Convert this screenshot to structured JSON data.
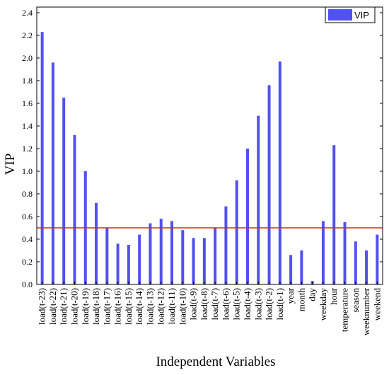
{
  "chart_data": {
    "type": "bar",
    "title": "",
    "xlabel": "Independent Variables",
    "ylabel": "VIP",
    "ylim": [
      0,
      2.45
    ],
    "yticks": [
      "0.0",
      "0.2",
      "0.4",
      "0.6",
      "0.8",
      "1.0",
      "1.2",
      "1.4",
      "1.6",
      "1.8",
      "2.0",
      "2.2",
      "2.4"
    ],
    "legend_position": "top-right",
    "grid": false,
    "categories": [
      "load(t-23)",
      "load(t-22)",
      "load(t-21)",
      "load(t-20)",
      "load(t-19)",
      "load(t-18)",
      "load(t-17)",
      "load(t-16)",
      "load(t-15)",
      "load(t-14)",
      "load(t-13)",
      "load(t-12)",
      "load(t-11)",
      "load(t-10)",
      "load(t-9)",
      "load(t-8)",
      "load(t-7)",
      "load(t-6)",
      "load(t-5)",
      "load(t-4)",
      "load(t-3)",
      "load(t-2)",
      "load(t-1)",
      "year",
      "month",
      "day",
      "weekday",
      "hour",
      "temperature",
      "season",
      "weeknumber",
      "weekend"
    ],
    "series": [
      {
        "name": "VIP",
        "color": "#5151f0",
        "values": [
          2.23,
          1.96,
          1.65,
          1.32,
          1.0,
          0.72,
          0.5,
          0.36,
          0.35,
          0.44,
          0.54,
          0.58,
          0.56,
          0.48,
          0.41,
          0.41,
          0.5,
          0.69,
          0.92,
          1.2,
          1.49,
          1.76,
          1.97,
          0.26,
          0.3,
          0.03,
          0.56,
          1.23,
          0.55,
          0.38,
          0.3,
          0.44
        ]
      }
    ],
    "reference_line": {
      "value": 0.5,
      "color": "#e8201e"
    }
  }
}
